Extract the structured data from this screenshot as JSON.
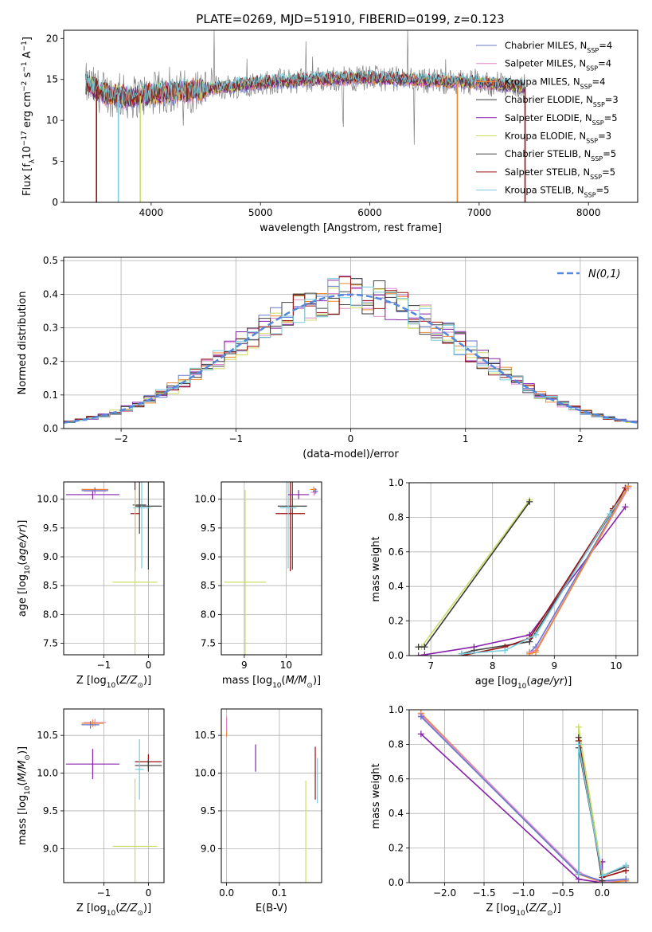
{
  "figure": {
    "title": "PLATE=0269, MJD=51910, FIBERID=0199, z=0.123"
  },
  "colors": {
    "Chabrier MILES": "#6677cc",
    "Salpeter MILES": "#dd88cc",
    "Kroupa MILES": "#ee8833",
    "Chabrier ELODIE": "#3a3a3a",
    "Salpeter ELODIE": "#8822aa",
    "Kroupa ELODIE": "#ccdd66",
    "Chabrier STELIB": "#444444",
    "Salpeter STELIB": "#991111",
    "Kroupa STELIB": "#77ccdd",
    "data": "#808080",
    "gaussian": "#5588dd"
  },
  "chart_data": [
    {
      "type": "line",
      "panel": "spectrum",
      "xlabel": "wavelength [Angstrom, rest frame]",
      "ylabel": "Flux [fλ10⁻¹⁷ erg cm⁻² s⁻¹ A⁻¹]",
      "xlim": [
        3200,
        8450
      ],
      "ylim": [
        0,
        21
      ],
      "xticks": [
        4000,
        5000,
        6000,
        7000,
        8000
      ],
      "yticks": [
        0,
        5,
        10,
        15,
        20
      ],
      "legend_position": "top-right",
      "series": [
        {
          "name": "Chabrier MILES, N_SSP=4",
          "label_main": "Chabrier MILES, N",
          "label_sub": "SSP",
          "label_tail": "=4"
        },
        {
          "name": "Salpeter MILES, N_SSP=4",
          "label_main": "Salpeter MILES, N",
          "label_sub": "SSP",
          "label_tail": "=4"
        },
        {
          "name": "Kroupa MILES, N_SSP=4",
          "label_main": "Kroupa MILES, N",
          "label_sub": "SSP",
          "label_tail": "=4"
        },
        {
          "name": "Chabrier ELODIE, N_SSP=3",
          "label_main": "Chabrier ELODIE, N",
          "label_sub": "SSP",
          "label_tail": "=3"
        },
        {
          "name": "Salpeter ELODIE, N_SSP=5",
          "label_main": "Salpeter ELODIE, N",
          "label_sub": "SSP",
          "label_tail": "=5"
        },
        {
          "name": "Kroupa ELODIE, N_SSP=3",
          "label_main": "Kroupa ELODIE, N",
          "label_sub": "SSP",
          "label_tail": "=3"
        },
        {
          "name": "Chabrier STELIB, N_SSP=5",
          "label_main": "Chabrier STELIB, N",
          "label_sub": "SSP",
          "label_tail": "=5"
        },
        {
          "name": "Salpeter STELIB, N_SSP=5",
          "label_main": "Salpeter STELIB, N",
          "label_sub": "SSP",
          "label_tail": "=5"
        },
        {
          "name": "Kroupa STELIB, N_SSP=5",
          "label_main": "Kroupa STELIB, N",
          "label_sub": "SSP",
          "label_tail": "=5"
        }
      ],
      "continuum": [
        [
          3400,
          14.3
        ],
        [
          3600,
          13.2
        ],
        [
          3800,
          12.8
        ],
        [
          4000,
          13.2
        ],
        [
          4500,
          13.8
        ],
        [
          5000,
          14.6
        ],
        [
          5500,
          15.0
        ],
        [
          6000,
          15.2
        ],
        [
          6500,
          14.9
        ],
        [
          7000,
          14.6
        ],
        [
          7400,
          14.1
        ]
      ],
      "drops": [
        {
          "series": "Salpeter STELIB",
          "x": 3500
        },
        {
          "series": "Kroupa STELIB",
          "x": 3700
        },
        {
          "series": "Kroupa ELODIE",
          "x": 3900
        },
        {
          "series": "Kroupa MILES",
          "x": 6800
        },
        {
          "series": "Salpeter STELIB",
          "x": 7420
        }
      ]
    },
    {
      "type": "area",
      "panel": "residuals",
      "xlabel": "(data-model)/error",
      "ylabel": "Normed distribution",
      "xlim": [
        -2.5,
        2.5
      ],
      "ylim": [
        0,
        0.51
      ],
      "xticks": [
        -2,
        -1,
        0,
        1,
        2
      ],
      "yticks": [
        0.0,
        0.1,
        0.2,
        0.3,
        0.4,
        0.5
      ],
      "bin_width": 0.1,
      "legend": "N(0,1)",
      "legend_position": "top-right",
      "gaussian": {
        "mean": 0,
        "sigma": 1
      },
      "histogram_series": [
        "Chabrier MILES",
        "Salpeter MILES",
        "Kroupa MILES",
        "Chabrier ELODIE",
        "Salpeter ELODIE",
        "Kroupa ELODIE",
        "Chabrier STELIB",
        "Salpeter STELIB",
        "Kroupa STELIB"
      ]
    },
    {
      "type": "scatter",
      "panel": "age-Z",
      "xlabel": "Z [log10(Z/Z⊙)]",
      "ylabel": "age [log10(age/yr)]",
      "xlim": [
        -1.9,
        0.35
      ],
      "ylim": [
        7.3,
        10.3
      ],
      "xticks": [
        -1,
        0
      ],
      "yticks": [
        7.5,
        8.0,
        8.5,
        9.0,
        9.5,
        10.0
      ],
      "errorbars": [
        {
          "series": "Salpeter ELODIE",
          "x": -1.25,
          "y": 10.08,
          "xerr": 0.6,
          "yerr": 0.08
        },
        {
          "series": "Salpeter MILES",
          "x": -1.2,
          "y": 10.14,
          "xerr": 0.25,
          "yerr": 0.06
        },
        {
          "series": "Kroupa MILES",
          "x": -1.2,
          "y": 10.17,
          "xerr": 0.3,
          "yerr": 0.04
        },
        {
          "series": "Chabrier MILES",
          "x": -1.2,
          "y": 10.15,
          "xerr": 0.3,
          "yerr": 0.05
        },
        {
          "series": "Chabrier ELODIE",
          "x": 0.0,
          "y": 9.88,
          "xerr": 0.3,
          "yerr": 1.1
        },
        {
          "series": "Kroupa STELIB",
          "x": -0.15,
          "y": 9.85,
          "xerr": 0.2,
          "yerr": 1.05
        },
        {
          "series": "Chabrier STELIB",
          "x": -0.2,
          "y": 9.9,
          "xerr": 0.15,
          "yerr": 0.5
        },
        {
          "series": "Salpeter STELIB",
          "x": -0.3,
          "y": 9.75,
          "xerr": 0.1,
          "yerr": 1.0
        },
        {
          "series": "Kroupa ELODIE",
          "x": -0.3,
          "y": 8.56,
          "xerr": 0.5,
          "yerr": 1.6
        }
      ]
    },
    {
      "type": "scatter",
      "panel": "age-mass",
      "xlabel": "mass [log10(M/M⊙)]",
      "ylabel": "",
      "xlim": [
        8.45,
        10.85
      ],
      "ylim": [
        7.3,
        10.3
      ],
      "xticks": [
        9,
        10
      ],
      "yticks": [
        7.5,
        8.0,
        8.5,
        9.0,
        9.5,
        10.0
      ],
      "errorbars": [
        {
          "series": "Kroupa ELODIE",
          "x": 9.02,
          "y": 8.56,
          "xerr": 0.5,
          "yerr": 1.6
        },
        {
          "series": "Chabrier ELODIE",
          "x": 10.15,
          "y": 9.88,
          "xerr": 0.35,
          "yerr": 1.1
        },
        {
          "series": "Salpeter STELIB",
          "x": 10.1,
          "y": 9.75,
          "xerr": 0.35,
          "yerr": 1.0
        },
        {
          "series": "Kroupa STELIB",
          "x": 10.05,
          "y": 9.85,
          "xerr": 0.2,
          "yerr": 1.05
        },
        {
          "series": "Salpeter ELODIE",
          "x": 10.3,
          "y": 10.08,
          "xerr": 0.25,
          "yerr": 0.08
        },
        {
          "series": "Salpeter MILES",
          "x": 10.67,
          "y": 10.12,
          "xerr": 0.08,
          "yerr": 0.06
        },
        {
          "series": "Kroupa MILES",
          "x": 10.66,
          "y": 10.17,
          "xerr": 0.08,
          "yerr": 0.05
        },
        {
          "series": "Chabrier MILES",
          "x": 10.7,
          "y": 10.14,
          "xerr": 0.06,
          "yerr": 0.05
        }
      ]
    },
    {
      "type": "line",
      "panel": "massweight-age",
      "xlabel": "age [log10(age/yr)]",
      "ylabel": "mass weight",
      "xlim": [
        6.65,
        10.35
      ],
      "ylim": [
        0,
        1.0
      ],
      "xticks": [
        7,
        8,
        9,
        10
      ],
      "yticks": [
        0.0,
        0.2,
        0.4,
        0.6,
        0.8,
        1.0
      ],
      "series": [
        {
          "name": "Kroupa ELODIE",
          "x": [
            6.8,
            6.85,
            8.6
          ],
          "y": [
            0.05,
            0.05,
            0.9
          ]
        },
        {
          "name": "Chabrier ELODIE",
          "x": [
            6.8,
            6.9,
            8.6
          ],
          "y": [
            0.05,
            0.05,
            0.89
          ]
        },
        {
          "name": "Salpeter ELODIE",
          "x": [
            6.8,
            6.9,
            7.7,
            8.6,
            10.15
          ],
          "y": [
            0.0,
            0.005,
            0.05,
            0.12,
            0.86
          ]
        },
        {
          "name": "Chabrier STELIB",
          "x": [
            7.5,
            7.7,
            8.6,
            9.95,
            10.15
          ],
          "y": [
            0.01,
            0.03,
            0.08,
            0.84,
            0.97
          ]
        },
        {
          "name": "Salpeter STELIB",
          "x": [
            7.5,
            8.2,
            8.6,
            9.95,
            10.15
          ],
          "y": [
            0.0,
            0.05,
            0.1,
            0.85,
            0.97
          ]
        },
        {
          "name": "Kroupa STELIB",
          "x": [
            7.5,
            8.2,
            8.7,
            9.9,
            10.2
          ],
          "y": [
            0.01,
            0.03,
            0.12,
            0.82,
            0.97
          ]
        },
        {
          "name": "Chabrier MILES",
          "x": [
            8.6,
            8.7,
            10.2
          ],
          "y": [
            0.02,
            0.05,
            0.98
          ]
        },
        {
          "name": "Salpeter MILES",
          "x": [
            8.6,
            8.7,
            10.2
          ],
          "y": [
            0.02,
            0.03,
            0.97
          ]
        },
        {
          "name": "Kroupa MILES",
          "x": [
            8.6,
            8.7,
            10.2
          ],
          "y": [
            0.01,
            0.02,
            0.98
          ]
        }
      ]
    },
    {
      "type": "scatter",
      "panel": "mass-Z",
      "xlabel": "Z [log10(Z/Z⊙)]",
      "ylabel": "mass [log10(M/M⊙)]",
      "xlim": [
        -1.9,
        0.35
      ],
      "ylim": [
        8.55,
        10.85
      ],
      "xticks": [
        -1,
        0
      ],
      "yticks": [
        9.0,
        9.5,
        10.0,
        10.5
      ],
      "errorbars": [
        {
          "series": "Salpeter MILES",
          "x": -1.2,
          "y": 10.67,
          "xerr": 0.25,
          "yerr": 0.05
        },
        {
          "series": "Kroupa MILES",
          "x": -1.25,
          "y": 10.66,
          "xerr": 0.25,
          "yerr": 0.05
        },
        {
          "series": "Chabrier MILES",
          "x": -1.3,
          "y": 10.64,
          "xerr": 0.2,
          "yerr": 0.05
        },
        {
          "series": "Salpeter ELODIE",
          "x": -1.25,
          "y": 10.12,
          "xerr": 0.6,
          "yerr": 0.2
        },
        {
          "series": "Salpeter STELIB",
          "x": 0.0,
          "y": 10.15,
          "xerr": 0.3,
          "yerr": 0.1
        },
        {
          "series": "Chabrier ELODIE",
          "x": 0.0,
          "y": 10.1,
          "xerr": 0.3,
          "yerr": 0.08
        },
        {
          "series": "Kroupa STELIB",
          "x": -0.2,
          "y": 10.05,
          "xerr": 0.1,
          "yerr": 0.4
        },
        {
          "series": "Kroupa ELODIE",
          "x": -0.3,
          "y": 9.03,
          "xerr": 0.5,
          "yerr": 0.9
        }
      ]
    },
    {
      "type": "scatter",
      "panel": "mass-ebv",
      "xlabel": "E(B-V)",
      "ylabel": "",
      "xlim": [
        -0.01,
        0.18
      ],
      "ylim": [
        8.55,
        10.85
      ],
      "xticks": [
        0.0,
        0.1
      ],
      "yticks": [
        9.0,
        9.5,
        10.0,
        10.5
      ],
      "errorbars": [
        {
          "series": "Kroupa MILES",
          "x": 0.0,
          "y": 10.6,
          "xerr": 0,
          "yerr": 0.12
        },
        {
          "series": "Salpeter MILES",
          "x": 0.0,
          "y": 10.65,
          "xerr": 0,
          "yerr": 0.1
        },
        {
          "series": "Salpeter ELODIE",
          "x": 0.055,
          "y": 10.2,
          "xerr": 0,
          "yerr": 0.18
        },
        {
          "series": "Kroupa ELODIE",
          "x": 0.15,
          "y": 9.2,
          "xerr": 0,
          "yerr": 0.7
        },
        {
          "series": "Salpeter STELIB",
          "x": 0.168,
          "y": 10.0,
          "xerr": 0,
          "yerr": 0.35
        },
        {
          "series": "Kroupa STELIB",
          "x": 0.172,
          "y": 9.9,
          "xerr": 0,
          "yerr": 0.3
        }
      ]
    },
    {
      "type": "line",
      "panel": "massweight-Z",
      "xlabel": "Z [log10(Z/Z⊙)]",
      "ylabel": "mass weight",
      "xlim": [
        -2.45,
        0.45
      ],
      "ylim": [
        0,
        1.0
      ],
      "xticks": [
        -2.0,
        -1.5,
        -1.0,
        -0.5,
        0.0
      ],
      "yticks": [
        0.0,
        0.2,
        0.4,
        0.6,
        0.8,
        1.0
      ],
      "series": [
        {
          "name": "Salpeter ELODIE",
          "x": [
            -2.3,
            -0.3,
            0.0,
            0.0
          ],
          "y": [
            0.86,
            0.02,
            0.0,
            0.12
          ]
        },
        {
          "name": "Kroupa MILES",
          "x": [
            -2.3,
            -0.3,
            0.0,
            0.3
          ],
          "y": [
            0.98,
            0.05,
            0.0,
            0.01
          ]
        },
        {
          "name": "Salpeter MILES",
          "x": [
            -2.3,
            -0.3,
            0.0,
            0.3
          ],
          "y": [
            0.97,
            0.06,
            0.0,
            0.02
          ]
        },
        {
          "name": "Chabrier MILES",
          "x": [
            -2.3,
            -0.3,
            0.0,
            0.3
          ],
          "y": [
            0.96,
            0.05,
            0.01,
            0.02
          ]
        },
        {
          "name": "Kroupa ELODIE",
          "x": [
            -0.3,
            -0.3,
            0.0,
            0.0
          ],
          "y": [
            0.05,
            0.9,
            0.05,
            0.05
          ]
        },
        {
          "name": "Chabrier ELODIE",
          "x": [
            -0.3,
            -0.3,
            0.0
          ],
          "y": [
            0.05,
            0.84,
            0.01
          ]
        },
        {
          "name": "Chabrier STELIB",
          "x": [
            -0.3,
            -0.3,
            0.0,
            0.3
          ],
          "y": [
            0.05,
            0.78,
            0.04,
            0.09
          ]
        },
        {
          "name": "Salpeter STELIB",
          "x": [
            -0.3,
            -0.3,
            0.0,
            0.3
          ],
          "y": [
            0.05,
            0.82,
            0.03,
            0.07
          ]
        },
        {
          "name": "Kroupa STELIB",
          "x": [
            -0.3,
            -0.3,
            0.0,
            0.3
          ],
          "y": [
            0.05,
            0.8,
            0.04,
            0.1
          ]
        }
      ]
    }
  ]
}
